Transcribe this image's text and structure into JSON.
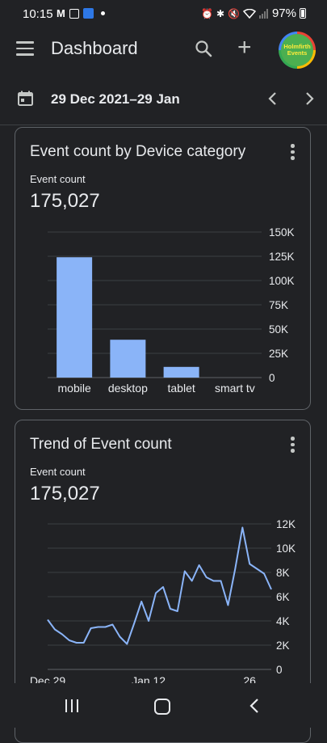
{
  "status_bar": {
    "time": "10:15",
    "battery": "97%",
    "icons": [
      "gmail-icon",
      "instagram-icon",
      "app-notification-icon",
      "dot-icon",
      "alarm-icon",
      "bluetooth-icon",
      "mute-icon",
      "wifi-icon",
      "signal-icon",
      "battery-icon"
    ]
  },
  "app_bar": {
    "title": "Dashboard",
    "avatar_text_line1": "Holmfirth",
    "avatar_text_line2": "Events"
  },
  "date_range": {
    "label": "29 Dec 2021–29 Jan"
  },
  "colors": {
    "background": "#212225",
    "bar": "#8ab4f8",
    "line": "#8ab4f8",
    "card_border": "#5f6368",
    "gridline": "#3c4043"
  },
  "cards": [
    {
      "title": "Event count by Device category",
      "metric_label": "Event count",
      "metric_value": "175,027"
    },
    {
      "title": "Trend of Event count",
      "metric_label": "Event count",
      "metric_value": "175,027"
    }
  ],
  "chart_data": [
    {
      "type": "bar",
      "title": "Event count by Device category",
      "categories": [
        "mobile",
        "desktop",
        "tablet",
        "smart tv"
      ],
      "values": [
        124000,
        39000,
        11000,
        0
      ],
      "ylim": [
        0,
        150000
      ],
      "yticks": [
        0,
        25000,
        50000,
        75000,
        100000,
        125000,
        150000
      ],
      "ytick_labels": [
        "0",
        "25K",
        "50K",
        "75K",
        "100K",
        "125K",
        "150K"
      ],
      "grid": true
    },
    {
      "type": "line",
      "title": "Trend of Event count",
      "x": [
        "2021-12-29",
        "2021-12-30",
        "2021-12-31",
        "2022-01-01",
        "2022-01-02",
        "2022-01-03",
        "2022-01-04",
        "2022-01-05",
        "2022-01-06",
        "2022-01-07",
        "2022-01-08",
        "2022-01-09",
        "2022-01-10",
        "2022-01-11",
        "2022-01-12",
        "2022-01-13",
        "2022-01-14",
        "2022-01-15",
        "2022-01-16",
        "2022-01-17",
        "2022-01-18",
        "2022-01-19",
        "2022-01-20",
        "2022-01-21",
        "2022-01-22",
        "2022-01-23",
        "2022-01-24",
        "2022-01-25",
        "2022-01-26",
        "2022-01-27",
        "2022-01-28",
        "2022-01-29"
      ],
      "values": [
        4100,
        3300,
        2900,
        2400,
        2200,
        2200,
        3400,
        3500,
        3500,
        3700,
        2700,
        2100,
        3800,
        5600,
        4000,
        6300,
        6800,
        5000,
        4800,
        8100,
        7300,
        8600,
        7600,
        7300,
        7300,
        5300,
        8300,
        11700,
        8700,
        8300,
        7900,
        6600
      ],
      "xtick_labels": [
        "Dec 29",
        "Jan 12",
        "26"
      ],
      "xtick_values": [
        "2021-12-29",
        "2022-01-12",
        "2022-01-26"
      ],
      "ylim": [
        0,
        12000
      ],
      "yticks": [
        0,
        2000,
        4000,
        6000,
        8000,
        10000,
        12000
      ],
      "ytick_labels": [
        "0",
        "2K",
        "4K",
        "6K",
        "8K",
        "10K",
        "12K"
      ],
      "grid": true
    }
  ]
}
